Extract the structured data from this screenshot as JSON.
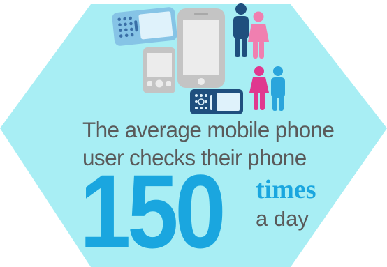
{
  "infographic": {
    "headline_line1": "The average mobile phone",
    "headline_line2": "user checks their phone",
    "number": "150",
    "unit": "times",
    "period": "a day"
  },
  "colors": {
    "background": "#a8eef4",
    "accent_blue": "#1aa6df",
    "text_gray": "#5a5a5a",
    "device_gray": "#c4c4c4",
    "navy": "#1f4f7e",
    "pink": "#f07fb0",
    "magenta": "#e0388f",
    "sky_blue": "#2aa5dc",
    "device_light_blue": "#86c4e6"
  },
  "icons": [
    "qwerty-phone-icon",
    "smartphone-icon",
    "pda-phone-icon",
    "feature-phone-icon",
    "man-icon",
    "woman-icon"
  ]
}
